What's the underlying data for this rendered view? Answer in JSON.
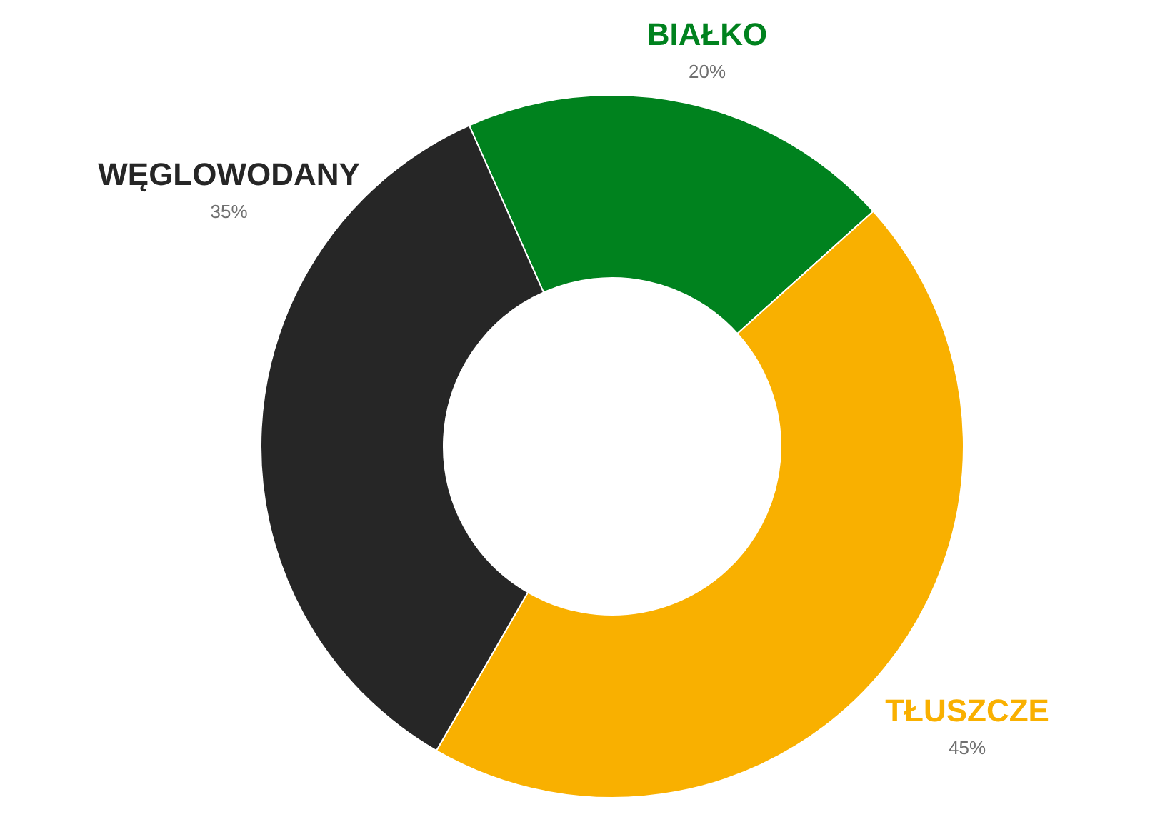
{
  "chart_data": {
    "type": "donut",
    "categories": [
      "BIAŁKO",
      "TŁUSZCZE",
      "WĘGLOWODANY"
    ],
    "values": [
      20,
      45,
      35
    ],
    "colors": [
      "#00821e",
      "#f9b000",
      "#262626"
    ],
    "value_labels": [
      "20%",
      "45%",
      "35%"
    ]
  }
}
